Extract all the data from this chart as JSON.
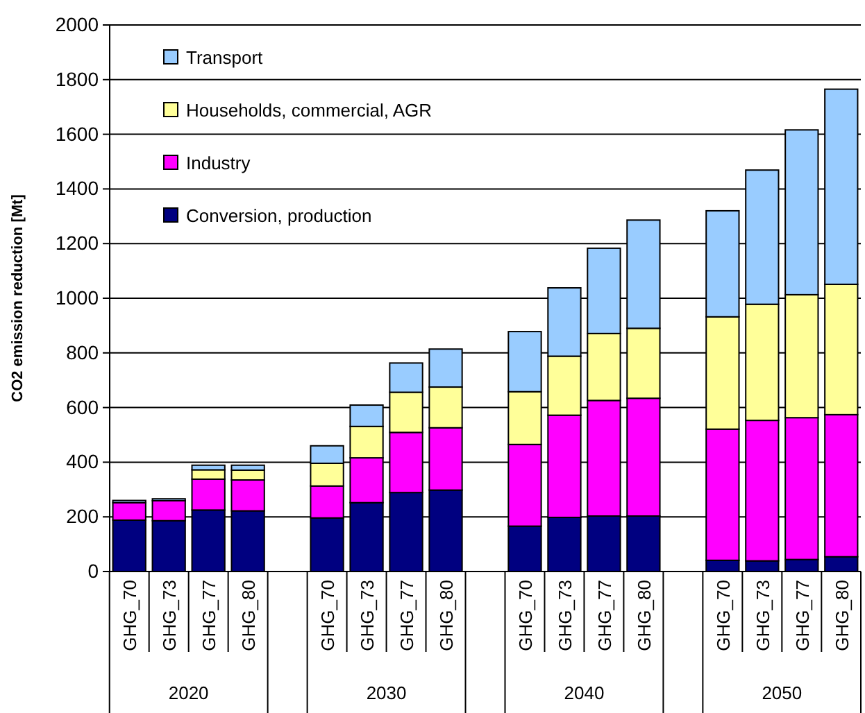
{
  "chart_data": {
    "type": "bar",
    "stacked": true,
    "ylabel": "CO2 emission reduction [Mt]",
    "categories": [
      "GHG_70",
      "GHG_73",
      "GHG_77",
      "GHG_80",
      null,
      "GHG_70",
      "GHG_73",
      "GHG_77",
      "GHG_80",
      null,
      "GHG_70",
      "GHG_73",
      "GHG_77",
      "GHG_80",
      null,
      "GHG_70",
      "GHG_73",
      "GHG_77",
      "GHG_80"
    ],
    "series": [
      {
        "name": "Conversion, production",
        "color": "#000080",
        "values": [
          188,
          186,
          225,
          222,
          null,
          196,
          252,
          289,
          298,
          null,
          166,
          198,
          203,
          203,
          null,
          41,
          39,
          44,
          54
        ]
      },
      {
        "name": "Industry",
        "color": "#ff00ff",
        "values": [
          64,
          73,
          113,
          113,
          null,
          117,
          164,
          220,
          228,
          null,
          299,
          374,
          423,
          431,
          null,
          480,
          514,
          519,
          520
        ]
      },
      {
        "name": "Households, commercial, AGR",
        "color": "#ffff99",
        "values": [
          null,
          null,
          34,
          36,
          null,
          83,
          115,
          147,
          149,
          null,
          193,
          216,
          245,
          256,
          null,
          411,
          425,
          450,
          477
        ]
      },
      {
        "name": "Transport",
        "color": "#99ccff",
        "values": [
          8,
          7,
          17,
          18,
          null,
          64,
          78,
          107,
          139,
          null,
          220,
          250,
          312,
          396,
          null,
          388,
          491,
          603,
          714
        ]
      }
    ],
    "ylim": [
      0,
      2000
    ],
    "yticks": [
      0,
      200,
      400,
      600,
      800,
      1000,
      1200,
      1400,
      1600,
      1800,
      2000
    ],
    "grid": "y",
    "legend": "top left",
    "annotations": [
      "2020",
      "2030",
      "2040",
      "2050"
    ]
  }
}
